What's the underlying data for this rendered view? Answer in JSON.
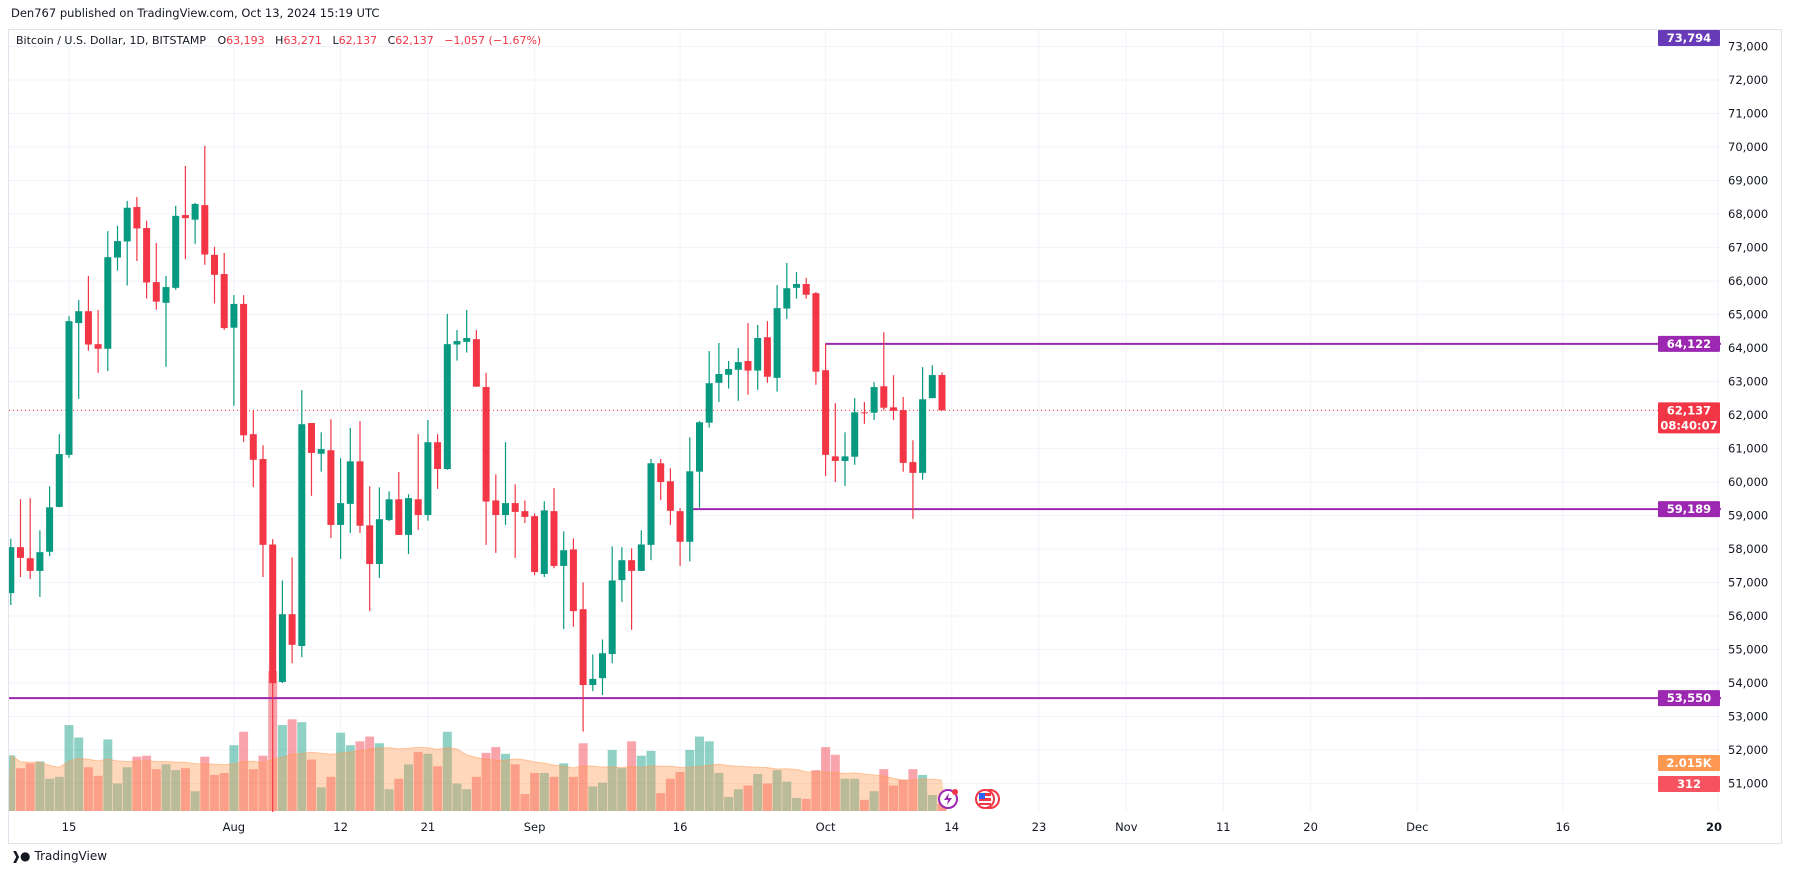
{
  "publisher_line": "Den767 published on TradingView.com, Oct 13, 2024 15:19 UTC",
  "legend": {
    "title": "Bitcoin / U.S. Dollar, 1D, BITSTAMP",
    "open_label": "O",
    "open": "63,193",
    "high_label": "H",
    "high": "63,271",
    "low_label": "L",
    "low": "62,137",
    "close_label": "C",
    "close": "62,137",
    "change": "−1,057 (−1.67%)"
  },
  "footer": {
    "logo_text": "TradingView"
  },
  "icons": [
    "lightning-event-icon",
    "us-flag-economic-event-icon"
  ],
  "colors": {
    "up": "#089981",
    "down": "#f23645",
    "level_line": "#9c27b0",
    "high_label": "#673ab7",
    "volume_ma": "#ff9850",
    "grid": "#f0f3fa"
  },
  "chart_data": {
    "type": "candlestick",
    "title": "Bitcoin / U.S. Dollar, 1D, BITSTAMP",
    "candle_fields": [
      "date",
      "open",
      "high",
      "low",
      "close",
      "volume"
    ],
    "candles": [
      [
        "2024-07-09",
        56683,
        58307,
        56328,
        58055,
        2384
      ],
      [
        "2024-07-10",
        58055,
        59484,
        57163,
        57735,
        1836
      ],
      [
        "2024-07-11",
        57724,
        59519,
        57106,
        57346,
        2041
      ],
      [
        "2024-07-12",
        57346,
        58558,
        56569,
        57906,
        2124
      ],
      [
        "2024-07-13",
        57918,
        59873,
        57792,
        59244,
        1384
      ],
      [
        "2024-07-14",
        59256,
        61428,
        59250,
        60833,
        1466
      ],
      [
        "2024-07-15",
        60810,
        64950,
        60719,
        64801,
        3685
      ],
      [
        "2024-07-16",
        64744,
        65430,
        62480,
        65098,
        3151
      ],
      [
        "2024-07-17",
        65098,
        66150,
        63921,
        64104,
        1877
      ],
      [
        "2024-07-18",
        64115,
        65133,
        63258,
        63978,
        1507
      ],
      [
        "2024-07-19",
        63978,
        67488,
        63315,
        66711,
        3069
      ],
      [
        "2024-07-20",
        66700,
        67648,
        66310,
        67191,
        1178
      ],
      [
        "2024-07-21",
        67180,
        68391,
        65865,
        68186,
        1877
      ],
      [
        "2024-07-22",
        68208,
        68506,
        66596,
        67568,
        2329
      ],
      [
        "2024-07-23",
        67580,
        67797,
        65476,
        65956,
        2370
      ],
      [
        "2024-07-24",
        65967,
        67134,
        65144,
        65384,
        1795
      ],
      [
        "2024-07-25",
        65350,
        66150,
        63440,
        65819,
        2000
      ],
      [
        "2024-07-26",
        65796,
        68243,
        65739,
        67945,
        1754
      ],
      [
        "2024-07-27",
        67968,
        69432,
        66653,
        67877,
        1836
      ],
      [
        "2024-07-28",
        67831,
        68334,
        67111,
        68300,
        849
      ],
      [
        "2024-07-29",
        68266,
        70038,
        66482,
        66791,
        2329
      ],
      [
        "2024-07-30",
        66780,
        67020,
        65327,
        66185,
        1548
      ],
      [
        "2024-07-31",
        66207,
        66836,
        64538,
        64595,
        1630
      ],
      [
        "2024-08-01",
        64606,
        65579,
        62274,
        65316,
        2822
      ],
      [
        "2024-08-02",
        65316,
        65579,
        61199,
        61394,
        3398
      ],
      [
        "2024-08-03",
        61428,
        62137,
        59850,
        60662,
        1795
      ],
      [
        "2024-08-04",
        60685,
        61097,
        57163,
        58124,
        2370
      ],
      [
        "2024-08-05",
        58135,
        58295,
        49000,
        53996,
        6000
      ],
      [
        "2024-08-06",
        54030,
        57060,
        54000,
        56054,
        3685
      ],
      [
        "2024-08-07",
        56054,
        57746,
        54590,
        55139,
        3932
      ],
      [
        "2024-08-08",
        55105,
        62743,
        54773,
        61725,
        3809
      ],
      [
        "2024-08-09",
        61760,
        61760,
        59587,
        60868,
        2206
      ],
      [
        "2024-08-10",
        60845,
        61485,
        60308,
        60982,
        1014
      ],
      [
        "2024-08-11",
        60948,
        61874,
        58329,
        58718,
        1466
      ],
      [
        "2024-08-12",
        58718,
        60708,
        57701,
        59370,
        3357
      ],
      [
        "2024-08-13",
        59347,
        61611,
        58478,
        60616,
        2822
      ],
      [
        "2024-08-14",
        60616,
        61817,
        58478,
        58695,
        2987
      ],
      [
        "2024-08-15",
        58707,
        59873,
        56146,
        57552,
        3192
      ],
      [
        "2024-08-16",
        57552,
        59839,
        57140,
        58890,
        2904
      ],
      [
        "2024-08-17",
        58867,
        59724,
        58833,
        59484,
        932
      ],
      [
        "2024-08-18",
        59484,
        60296,
        58421,
        58421,
        1384
      ],
      [
        "2024-08-19",
        58421,
        59633,
        57849,
        59519,
        2000
      ],
      [
        "2024-08-20",
        59484,
        61428,
        58570,
        59015,
        2535
      ],
      [
        "2024-08-21",
        59015,
        61851,
        58844,
        61188,
        2452
      ],
      [
        "2024-08-22",
        61188,
        61428,
        59793,
        60388,
        1918
      ],
      [
        "2024-08-23",
        60388,
        65018,
        60365,
        64115,
        3398
      ],
      [
        "2024-08-24",
        64104,
        64538,
        63623,
        64207,
        1178
      ],
      [
        "2024-08-25",
        64184,
        65133,
        63864,
        64298,
        932
      ],
      [
        "2024-08-26",
        64264,
        64538,
        62846,
        62846,
        1466
      ],
      [
        "2024-08-27",
        62835,
        63258,
        58124,
        59416,
        2493
      ],
      [
        "2024-08-28",
        59450,
        60228,
        57884,
        59015,
        2740
      ],
      [
        "2024-08-29",
        59015,
        61188,
        58718,
        59370,
        2452
      ],
      [
        "2024-08-30",
        59370,
        59930,
        57735,
        59107,
        2000
      ],
      [
        "2024-08-31",
        59130,
        59450,
        58776,
        58958,
        726
      ],
      [
        "2024-09-01",
        58981,
        59061,
        57220,
        57312,
        1630
      ],
      [
        "2024-09-02",
        57255,
        59427,
        57163,
        59153,
        1630
      ],
      [
        "2024-09-03",
        59130,
        59816,
        57426,
        57495,
        1466
      ],
      [
        "2024-09-04",
        57495,
        58524,
        55608,
        57964,
        2041
      ],
      [
        "2024-09-05",
        57987,
        58318,
        55677,
        56146,
        1466
      ],
      [
        "2024-09-06",
        56203,
        57003,
        52550,
        53939,
        2904
      ],
      [
        "2024-09-07",
        53939,
        54854,
        53756,
        54122,
        1055
      ],
      [
        "2024-09-08",
        54145,
        55299,
        53641,
        54888,
        1219
      ],
      [
        "2024-09-09",
        54865,
        58078,
        54590,
        57060,
        2617
      ],
      [
        "2024-09-10",
        57071,
        58055,
        56420,
        57666,
        1836
      ],
      [
        "2024-09-11",
        57666,
        58021,
        55585,
        57346,
        2987
      ],
      [
        "2024-09-12",
        57346,
        58558,
        57346,
        58135,
        2370
      ],
      [
        "2024-09-13",
        58124,
        60685,
        57666,
        60559,
        2576
      ],
      [
        "2024-09-14",
        60559,
        60685,
        59461,
        59999,
        767
      ],
      [
        "2024-09-15",
        60022,
        60411,
        58718,
        59141,
        1384
      ],
      [
        "2024-09-16",
        59130,
        59221,
        57495,
        58215,
        1671
      ],
      [
        "2024-09-17",
        58215,
        61337,
        57632,
        60319,
        2617
      ],
      [
        "2024-09-18",
        60308,
        61817,
        59233,
        61783,
        3192
      ],
      [
        "2024-09-19",
        61771,
        63909,
        61622,
        62949,
        2987
      ],
      [
        "2024-09-20",
        62960,
        64149,
        62389,
        63223,
        1630
      ],
      [
        "2024-09-21",
        63200,
        63612,
        62789,
        63372,
        603
      ],
      [
        "2024-09-22",
        63349,
        63999,
        62423,
        63578,
        932
      ],
      [
        "2024-09-23",
        63612,
        64744,
        62606,
        63326,
        1096
      ],
      [
        "2024-09-24",
        63326,
        64687,
        62754,
        64298,
        1589
      ],
      [
        "2024-09-25",
        64321,
        64801,
        62960,
        63143,
        1178
      ],
      [
        "2024-09-26",
        63109,
        65876,
        62697,
        65190,
        1754
      ],
      [
        "2024-09-27",
        65178,
        66539,
        64870,
        65784,
        1260
      ],
      [
        "2024-09-28",
        65796,
        66265,
        65476,
        65910,
        562
      ],
      [
        "2024-09-29",
        65910,
        66093,
        65476,
        65590,
        521
      ],
      [
        "2024-09-30",
        65636,
        65670,
        62903,
        63292,
        1754
      ],
      [
        "2024-10-01",
        63338,
        64138,
        60182,
        60810,
        2740
      ],
      [
        "2024-10-02",
        60765,
        62354,
        59999,
        60628,
        2411
      ],
      [
        "2024-10-03",
        60628,
        61485,
        59884,
        60765,
        1384
      ],
      [
        "2024-10-04",
        60754,
        62503,
        60513,
        62080,
        1384
      ],
      [
        "2024-10-05",
        62080,
        62389,
        61737,
        62060,
        480
      ],
      [
        "2024-10-06",
        62069,
        62983,
        61851,
        62834,
        849
      ],
      [
        "2024-10-07",
        62857,
        64470,
        62137,
        62217,
        1795
      ],
      [
        "2024-10-08",
        62228,
        63189,
        61851,
        62126,
        1096
      ],
      [
        "2024-10-09",
        62148,
        62537,
        60308,
        60571,
        1343
      ],
      [
        "2024-10-10",
        60594,
        61245,
        58901,
        60273,
        1795
      ],
      [
        "2024-10-11",
        60273,
        63429,
        60067,
        62469,
        1548
      ],
      [
        "2024-10-12",
        62503,
        63486,
        62503,
        63193,
        685
      ],
      [
        "2024-10-13",
        63193,
        63271,
        62137,
        62137,
        312
      ]
    ],
    "horizontal_levels": [
      {
        "price": 64122,
        "label": "64,122",
        "from": "2024-10-01"
      },
      {
        "price": 59189,
        "label": "59,189",
        "from": "2024-09-17"
      },
      {
        "price": 53550,
        "label": "53,550",
        "from": null
      }
    ],
    "last_price": {
      "price": 62137,
      "label": "62,137",
      "countdown": "08:40:07"
    },
    "high_marker": {
      "label": "73,794"
    },
    "volume_ma_label": "2.015K",
    "volume_last_label": "312",
    "y_axis": {
      "ticks": [
        51000,
        52000,
        53000,
        54000,
        55000,
        56000,
        57000,
        58000,
        59000,
        60000,
        61000,
        62000,
        63000,
        64000,
        65000,
        66000,
        67000,
        68000,
        69000,
        70000,
        71000,
        72000,
        73000
      ],
      "ylim": [
        50400,
        73800
      ],
      "position": "right"
    },
    "x_axis": {
      "ticks": [
        {
          "label": "15",
          "date": "2024-07-15"
        },
        {
          "label": "Aug",
          "date": "2024-08-01"
        },
        {
          "label": "12",
          "date": "2024-08-12"
        },
        {
          "label": "21",
          "date": "2024-08-21"
        },
        {
          "label": "Sep",
          "date": "2024-09-01"
        },
        {
          "label": "16",
          "date": "2024-09-16"
        },
        {
          "label": "Oct",
          "date": "2024-10-01"
        },
        {
          "label": "14",
          "date": "2024-10-14"
        },
        {
          "label": "23",
          "date": "2024-10-23"
        },
        {
          "label": "Nov",
          "date": "2024-11-01"
        },
        {
          "label": "11",
          "date": "2024-11-11"
        },
        {
          "label": "20",
          "date": "2024-11-20"
        },
        {
          "label": "Dec",
          "date": "2024-12-01"
        },
        {
          "label": "16",
          "date": "2024-12-16"
        },
        {
          "label": "20",
          "date": "2025-01-01",
          "bold": true
        }
      ]
    },
    "grid": true
  }
}
